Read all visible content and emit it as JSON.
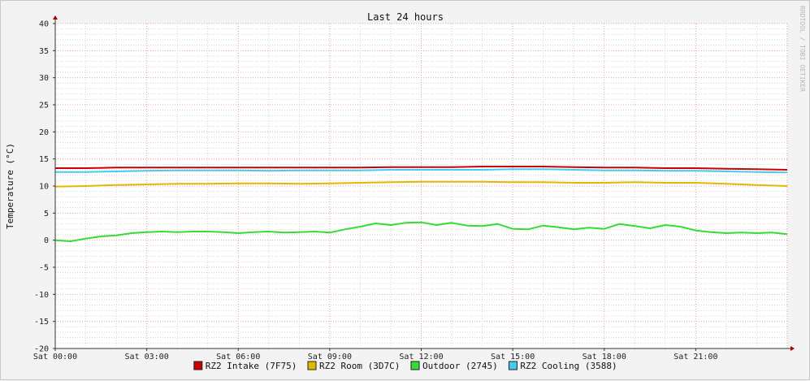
{
  "chart_data": {
    "type": "line",
    "title": "Last 24 hours",
    "ylabel": "Temperature (°C)",
    "xlabel": "",
    "watermark": "RRDTOOL / TOBI OETIKER",
    "ylim": [
      -20,
      40
    ],
    "xlim_hours": [
      0,
      24
    ],
    "y_major_step": 5,
    "y_ticks": [
      "-20",
      "-15",
      "-10",
      "-5",
      "0",
      "5",
      "10",
      "15",
      "20",
      "25",
      "30",
      "35",
      "40"
    ],
    "x_ticks": [
      {
        "hour": 0,
        "label": "Sat 00:00"
      },
      {
        "hour": 3,
        "label": "Sat 03:00"
      },
      {
        "hour": 6,
        "label": "Sat 06:00"
      },
      {
        "hour": 9,
        "label": "Sat 09:00"
      },
      {
        "hour": 12,
        "label": "Sat 12:00"
      },
      {
        "hour": 15,
        "label": "Sat 15:00"
      },
      {
        "hour": 18,
        "label": "Sat 18:00"
      },
      {
        "hour": 21,
        "label": "Sat 21:00"
      }
    ],
    "grid": true,
    "legend_position": "bottom-center",
    "series": [
      {
        "name": "RZ2 Intake (7F75)",
        "color": "#cc0000",
        "x": [
          0,
          1,
          2,
          3,
          4,
          5,
          6,
          7,
          8,
          9,
          10,
          11,
          12,
          13,
          14,
          15,
          16,
          17,
          18,
          19,
          20,
          21,
          22,
          23,
          24
        ],
        "y": [
          13.3,
          13.3,
          13.4,
          13.4,
          13.4,
          13.4,
          13.4,
          13.4,
          13.4,
          13.4,
          13.4,
          13.5,
          13.5,
          13.5,
          13.6,
          13.6,
          13.6,
          13.5,
          13.4,
          13.4,
          13.3,
          13.3,
          13.2,
          13.1,
          13.0
        ]
      },
      {
        "name": "RZ2 Room (3D7C)",
        "color": "#e5b800",
        "x": [
          0,
          1,
          2,
          3,
          4,
          5,
          6,
          7,
          8,
          9,
          10,
          11,
          12,
          13,
          14,
          15,
          16,
          17,
          18,
          19,
          20,
          21,
          22,
          23,
          24
        ],
        "y": [
          9.9,
          10.0,
          10.2,
          10.3,
          10.4,
          10.4,
          10.5,
          10.5,
          10.4,
          10.5,
          10.6,
          10.7,
          10.8,
          10.8,
          10.8,
          10.7,
          10.7,
          10.6,
          10.6,
          10.7,
          10.6,
          10.6,
          10.4,
          10.2,
          10.0
        ]
      },
      {
        "name": "Outdoor (2745)",
        "color": "#33dd33",
        "x": [
          0,
          0.5,
          1,
          1.5,
          2,
          2.5,
          3,
          3.5,
          4,
          4.5,
          5,
          5.5,
          6,
          6.5,
          7,
          7.5,
          8,
          8.5,
          9,
          9.5,
          10,
          10.5,
          11,
          11.5,
          12,
          12.5,
          13,
          13.5,
          14,
          14.5,
          15,
          15.5,
          16,
          16.5,
          17,
          17.5,
          18,
          18.5,
          19,
          19.5,
          20,
          20.5,
          21,
          21.5,
          22,
          22.5,
          23,
          23.5,
          24
        ],
        "y": [
          0.0,
          -0.2,
          0.3,
          0.7,
          0.9,
          1.3,
          1.5,
          1.6,
          1.5,
          1.6,
          1.6,
          1.5,
          1.3,
          1.5,
          1.6,
          1.4,
          1.5,
          1.6,
          1.4,
          2.0,
          2.5,
          3.1,
          2.8,
          3.2,
          3.3,
          2.8,
          3.2,
          2.7,
          2.6,
          3.0,
          2.1,
          2.0,
          2.7,
          2.4,
          2.0,
          2.3,
          2.1,
          3.0,
          2.6,
          2.2,
          2.8,
          2.5,
          1.8,
          1.5,
          1.3,
          1.4,
          1.3,
          1.4,
          1.1
        ]
      },
      {
        "name": "RZ2 Cooling (3588)",
        "color": "#44ccee",
        "x": [
          0,
          1,
          2,
          3,
          4,
          5,
          6,
          7,
          8,
          9,
          10,
          11,
          12,
          13,
          14,
          15,
          16,
          17,
          18,
          19,
          20,
          21,
          22,
          23,
          24
        ],
        "y": [
          12.6,
          12.6,
          12.7,
          12.8,
          12.9,
          12.9,
          12.9,
          12.8,
          12.9,
          12.9,
          12.9,
          13.0,
          13.0,
          13.0,
          13.0,
          13.1,
          13.1,
          13.0,
          12.9,
          12.9,
          12.8,
          12.8,
          12.7,
          12.6,
          12.5
        ]
      }
    ]
  }
}
